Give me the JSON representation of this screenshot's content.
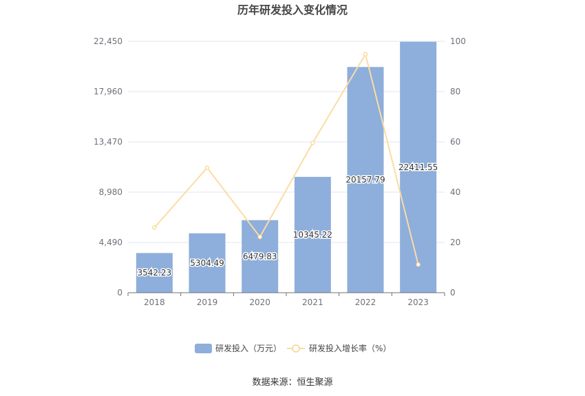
{
  "chart_data": {
    "type": "bar",
    "title": "历年研发投入变化情况",
    "categories": [
      "2018",
      "2019",
      "2020",
      "2021",
      "2022",
      "2023"
    ],
    "series": [
      {
        "name": "研发投入（万元）",
        "type": "bar",
        "axis": "left",
        "color": "#8eaedb",
        "values": [
          3542.23,
          5304.49,
          6479.83,
          10345.22,
          20157.79,
          22411.55
        ],
        "labels": [
          "3542.23",
          "5304.49",
          "6479.83",
          "10345.22",
          "20157.79",
          "22411.55"
        ]
      },
      {
        "name": "研发投入增长率（%）",
        "type": "line",
        "axis": "right",
        "color": "#fbdca3",
        "values": [
          25.9,
          49.7,
          22.2,
          59.6,
          94.9,
          11.2
        ]
      }
    ],
    "y_left": {
      "ylim": [
        0,
        22450
      ],
      "ticks": [
        "0",
        "4,490",
        "8,980",
        "13,470",
        "17,960",
        "22,450"
      ]
    },
    "y_right": {
      "ylim": [
        0,
        100
      ],
      "ticks": [
        "0",
        "20",
        "40",
        "60",
        "80",
        "100"
      ]
    },
    "grid": true,
    "legend_position": "bottom"
  },
  "source_text": "数据来源：恒生聚源"
}
